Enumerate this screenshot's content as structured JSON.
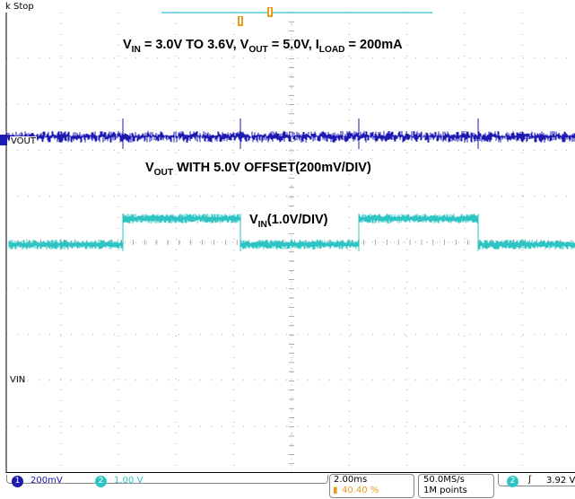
{
  "header": {
    "trigger_status": "k Stop"
  },
  "annotations": {
    "title_pre": "V",
    "title_sub1": "IN",
    "title_mid1": " = 3.0V TO 3.6V, V",
    "title_sub2": "OUT",
    "title_mid2": " = 5.0V, I",
    "title_sub3": "LOAD",
    "title_post": " = 200mA",
    "vout_pre": "V",
    "vout_sub": "OUT",
    "vout_post": " WITH 5.0V OFFSET(200mV/DIV)",
    "vin_pre": "V",
    "vin_sub": "IN",
    "vin_post": "(1.0V/DIV)"
  },
  "channel_labels": {
    "vout": "VOUT",
    "vin": "VIN"
  },
  "status_bar": {
    "ch1_number": "1",
    "ch1_scale": "200mV",
    "ch2_number": "2",
    "ch2_scale": "1.00 V",
    "timebase": "2.00ms",
    "trigger_position": "40.40 %",
    "sample_rate": "50.0MS/s",
    "record_length": "1M points",
    "trigger_source": "2",
    "trigger_slope": "ʃ",
    "trigger_level": "3.92 V"
  },
  "colors": {
    "ch1": "#1c1ab0",
    "ch2": "#2fc4c4",
    "marker": "#e59a1a",
    "grid": "#a0a0a0",
    "frame": "#000000"
  }
}
